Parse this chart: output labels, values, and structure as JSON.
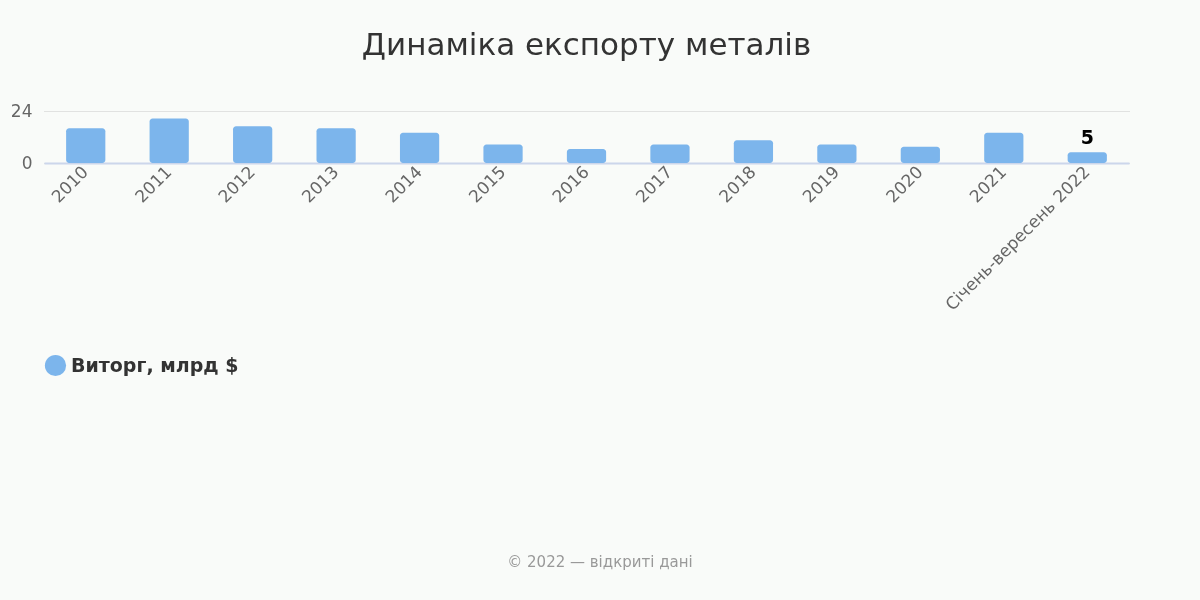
{
  "chart_data": {
    "type": "bar",
    "title": "Динаміка експорту металів",
    "categories": [
      "2010",
      "2011",
      "2012",
      "2013",
      "2014",
      "2015",
      "2016",
      "2017",
      "2018",
      "2019",
      "2020",
      "2021",
      "Січень-вересень 2022"
    ],
    "series": [
      {
        "name": "Виторг, млрд $",
        "color": "#7cb5ec",
        "values": [
          16,
          20.5,
          17,
          16,
          14,
          8.5,
          6.5,
          8.5,
          10.5,
          8.5,
          7.5,
          14,
          5
        ],
        "value_labels": [
          null,
          null,
          null,
          null,
          null,
          null,
          null,
          null,
          null,
          null,
          null,
          null,
          "5"
        ]
      }
    ],
    "ylim": [
      0,
      24
    ],
    "yticks": [
      0,
      24
    ],
    "grid": "y",
    "legend": "bottom",
    "annotations": [
      "© 2022 — відкриті дані"
    ]
  }
}
